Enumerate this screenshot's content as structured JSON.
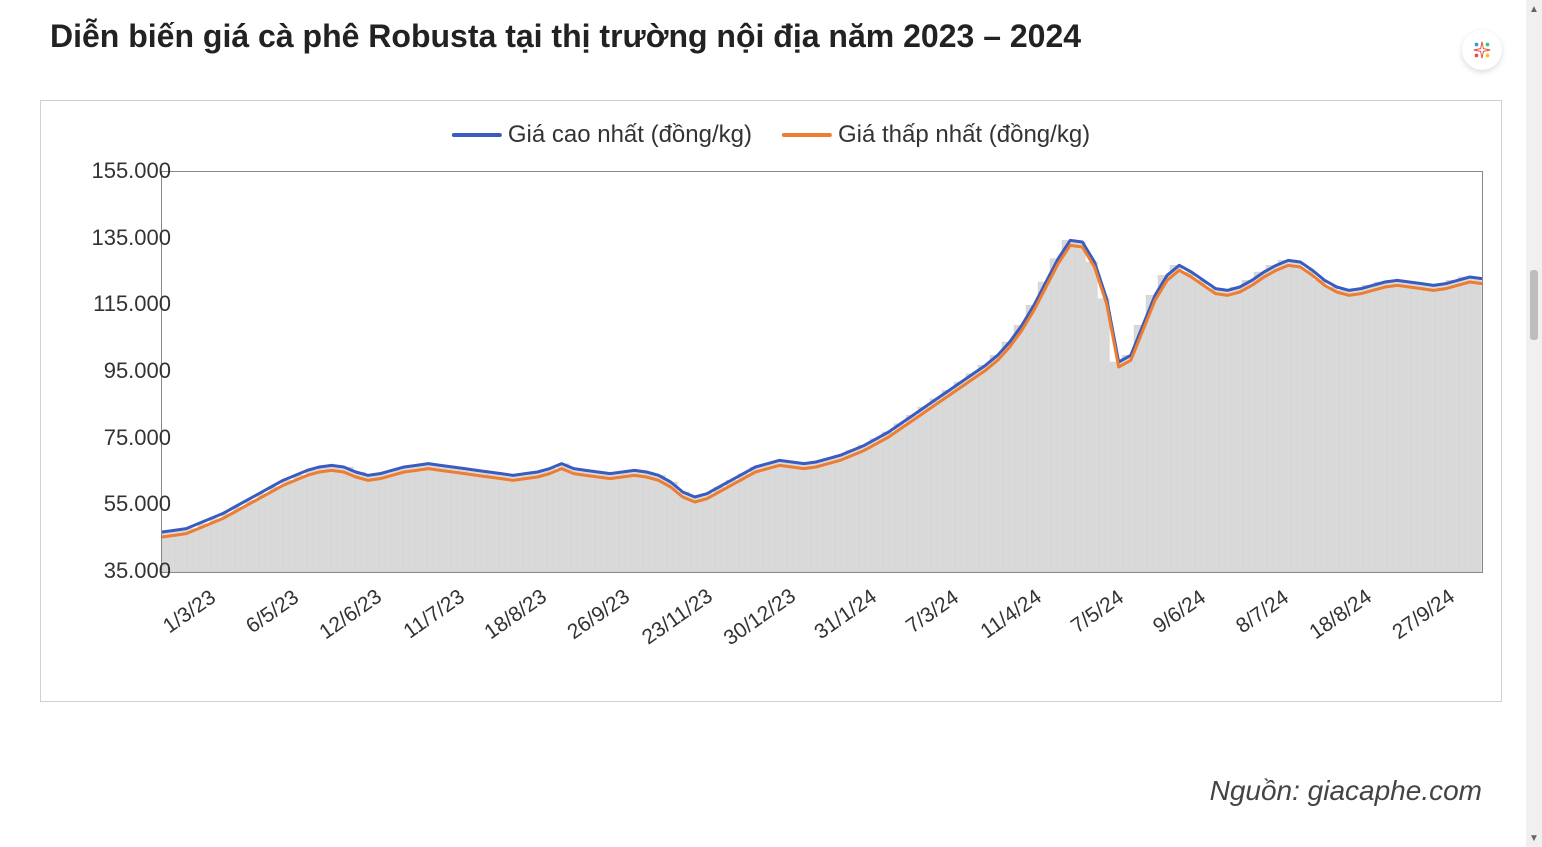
{
  "title": "Diễn biến giá cà phê Robusta tại thị trường nội địa năm 2023 – 2024",
  "source_text": "Nguồn: giacaphe.com",
  "chart": {
    "type": "line-with-area-bars",
    "background_color": "#ffffff",
    "plot_border_color": "#888888",
    "frame_border_color": "#cfcfcf",
    "fill_bar_color": "#d9d9d9",
    "fill_bar_border": "#bfbfbf",
    "y_axis": {
      "min": 35000,
      "max": 155000,
      "ticks": [
        35000,
        55000,
        75000,
        95000,
        115000,
        135000,
        155000
      ],
      "tick_labels": [
        "35.000",
        "55.000",
        "75.000",
        "95.000",
        "115.000",
        "135.000",
        "155.000"
      ],
      "label_fontsize": 22,
      "label_color": "#333333"
    },
    "x_axis": {
      "tick_labels": [
        "1/3/23",
        "6/5/23",
        "12/6/23",
        "11/7/23",
        "18/8/23",
        "26/9/23",
        "23/11/23",
        "30/12/23",
        "31/1/24",
        "7/3/24",
        "11/4/24",
        "7/5/24",
        "9/6/24",
        "8/7/24",
        "18/8/24",
        "27/9/24"
      ],
      "label_rotation_deg": -35,
      "label_fontsize": 21,
      "label_color": "#333333"
    },
    "legend": {
      "items": [
        {
          "label": "Giá cao nhất (đồng/kg)",
          "color": "#3a5bbf"
        },
        {
          "label": "Giá thấp nhất (đồng/kg)",
          "color": "#ed7d31"
        }
      ],
      "fontsize": 24
    },
    "series_high": {
      "color": "#3a5bbf",
      "line_width": 3,
      "values": [
        47000,
        47500,
        48000,
        49500,
        51000,
        52500,
        54500,
        56500,
        58500,
        60500,
        62500,
        64000,
        65500,
        66500,
        67000,
        66500,
        65000,
        64000,
        64500,
        65500,
        66500,
        67000,
        67500,
        67000,
        66500,
        66000,
        65500,
        65000,
        64500,
        64000,
        64500,
        65000,
        66000,
        67500,
        66000,
        65500,
        65000,
        64500,
        65000,
        65500,
        65000,
        64000,
        62000,
        59000,
        57500,
        58500,
        60500,
        62500,
        64500,
        66500,
        67500,
        68500,
        68000,
        67500,
        68000,
        69000,
        70000,
        71500,
        73000,
        75000,
        77000,
        79500,
        82000,
        84500,
        87000,
        89500,
        92000,
        94500,
        97000,
        100000,
        104000,
        109000,
        115000,
        122000,
        129000,
        134500,
        134000,
        128000,
        117000,
        98000,
        100000,
        109000,
        118000,
        124000,
        127000,
        125000,
        122500,
        120000,
        119500,
        120500,
        122500,
        125000,
        127000,
        128500,
        128000,
        125500,
        122500,
        120500,
        119500,
        120000,
        121000,
        122000,
        122500,
        122000,
        121500,
        121000,
        121500,
        122500,
        123500,
        123000
      ]
    },
    "series_low": {
      "color": "#ed7d31",
      "line_width": 3,
      "values": [
        45500,
        46000,
        46500,
        48000,
        49500,
        51000,
        53000,
        55000,
        57000,
        59000,
        61000,
        62500,
        64000,
        65000,
        65500,
        65000,
        63500,
        62500,
        63000,
        64000,
        65000,
        65500,
        66000,
        65500,
        65000,
        64500,
        64000,
        63500,
        63000,
        62500,
        63000,
        63500,
        64500,
        66000,
        64500,
        64000,
        63500,
        63000,
        63500,
        64000,
        63500,
        62500,
        60500,
        57500,
        56000,
        57000,
        59000,
        61000,
        63000,
        65000,
        66000,
        67000,
        66500,
        66000,
        66500,
        67500,
        68500,
        70000,
        71500,
        73500,
        75500,
        78000,
        80500,
        83000,
        85500,
        88000,
        90500,
        93000,
        95500,
        98500,
        102500,
        107500,
        113500,
        120500,
        127500,
        133000,
        132500,
        126500,
        115500,
        96500,
        98500,
        107500,
        116500,
        122500,
        125500,
        123500,
        121000,
        118500,
        118000,
        119000,
        121000,
        123500,
        125500,
        127000,
        126500,
        124000,
        121000,
        119000,
        118000,
        118500,
        119500,
        120500,
        121000,
        120500,
        120000,
        119500,
        120000,
        121000,
        122000,
        121500
      ]
    }
  },
  "scrollbar": {
    "track_color": "#f0f0f0",
    "thumb_color": "#bdbdbd"
  }
}
